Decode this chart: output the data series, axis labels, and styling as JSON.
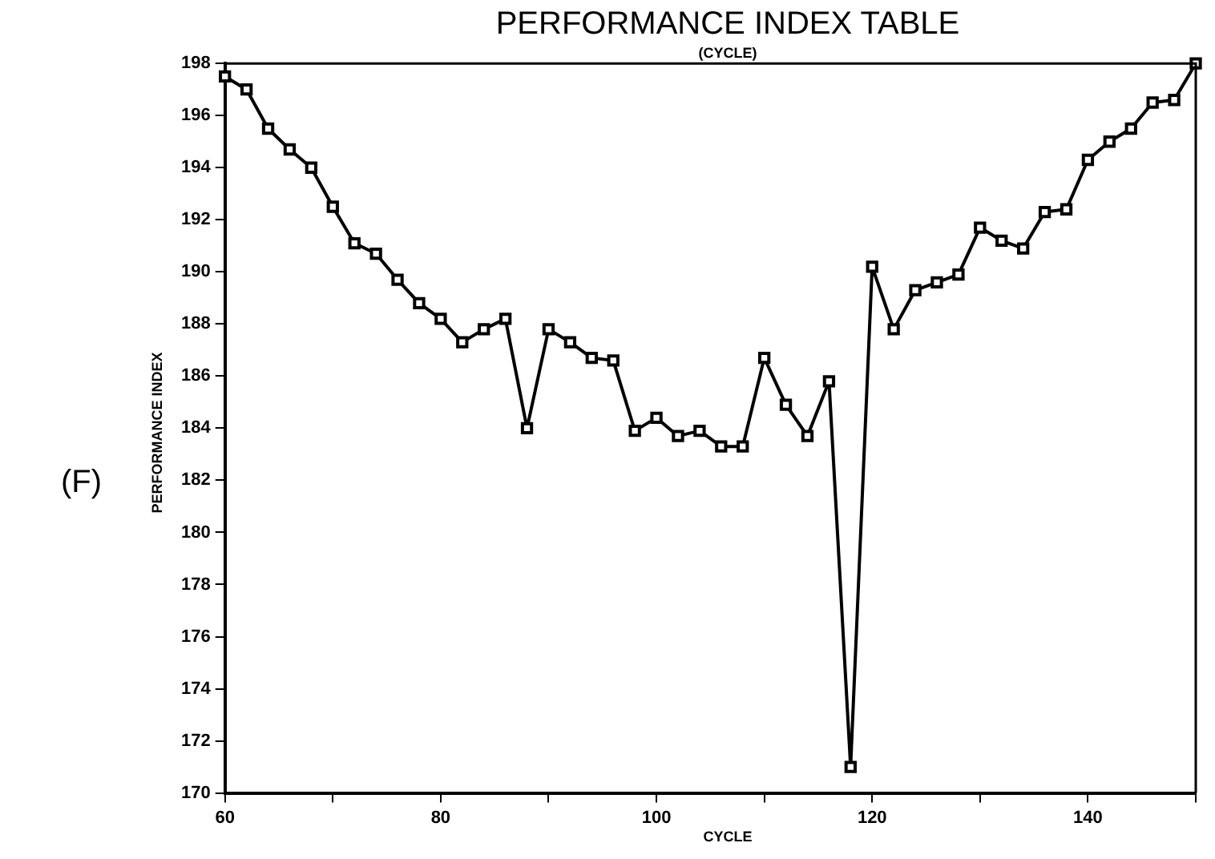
{
  "chart_data": {
    "type": "line",
    "title": "PERFORMANCE INDEX TABLE",
    "subtitle": "(CYCLE)",
    "xlabel": "CYCLE",
    "ylabel": "PERFORMANCE INDEX",
    "annotations": [
      "(F)"
    ],
    "x": [
      60,
      62,
      64,
      66,
      68,
      70,
      72,
      74,
      76,
      78,
      80,
      82,
      84,
      86,
      88,
      90,
      92,
      94,
      96,
      98,
      100,
      102,
      104,
      106,
      108,
      110,
      112,
      114,
      116,
      118,
      120,
      122,
      124,
      126,
      128,
      130,
      132,
      134,
      136,
      138,
      140,
      142,
      144,
      146,
      148,
      150
    ],
    "series": [
      {
        "color": "#000000",
        "values": [
          197.5,
          197,
          195.5,
          194.7,
          194,
          192.5,
          191.1,
          190.7,
          189.7,
          188.8,
          188.2,
          187.3,
          187.8,
          188.2,
          184,
          187.8,
          187.3,
          186.7,
          186.6,
          183.9,
          184.4,
          183.7,
          183.9,
          183.3,
          183.3,
          186.7,
          184.9,
          183.7,
          185.8,
          171,
          190.2,
          187.8,
          189.3,
          189.6,
          189.9,
          191.7,
          191.2,
          190.9,
          192.3,
          192.4,
          194.3,
          195,
          195.5,
          196.5,
          196.6,
          198
        ]
      }
    ],
    "xlim": [
      60,
      150
    ],
    "xticks": [
      60,
      {
        "value": 70,
        "label": null
      },
      80,
      {
        "value": 90,
        "label": null
      },
      100,
      {
        "value": 110,
        "label": null
      },
      120,
      {
        "value": 130,
        "label": null
      },
      140,
      {
        "value": 150,
        "label": null
      }
    ],
    "ylim": [
      170,
      198
    ],
    "yticks": [
      170,
      172,
      174,
      176,
      178,
      180,
      182,
      184,
      186,
      188,
      190,
      192,
      194,
      196,
      198
    ],
    "grid": false,
    "legend": false,
    "marker": "square",
    "line_style": "solid"
  }
}
